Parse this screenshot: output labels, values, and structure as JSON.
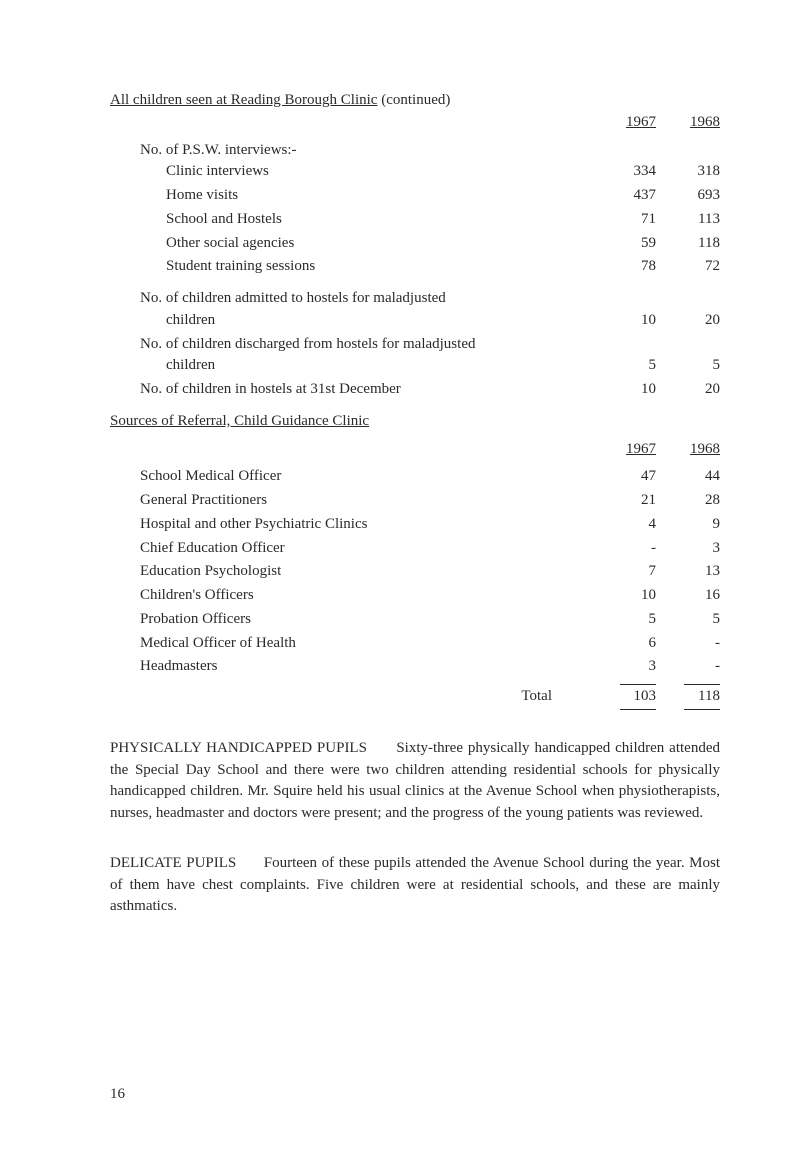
{
  "title_underlined": "All children seen at Reading Borough Clinic",
  "title_tail": " (continued)",
  "years": {
    "a": "1967",
    "b": "1968"
  },
  "psw_header": "No. of P.S.W. interviews:-",
  "psw_rows": [
    {
      "label": "Clinic interviews",
      "a": "334",
      "b": "318"
    },
    {
      "label": "Home visits",
      "a": "437",
      "b": "693"
    },
    {
      "label": "School and Hostels",
      "a": "71",
      "b": "113"
    },
    {
      "label": "Other social agencies",
      "a": "59",
      "b": "118"
    },
    {
      "label": "Student training sessions",
      "a": "78",
      "b": "72"
    }
  ],
  "hostel_rows": [
    {
      "label1": "No. of children admitted to hostels for maladjusted",
      "label2": "children",
      "a": "10",
      "b": "20"
    },
    {
      "label1": "No. of children discharged from hostels for maladjusted",
      "label2": "children",
      "a": "5",
      "b": "5"
    },
    {
      "label_single": "No. of children in hostels at 31st December",
      "a": "10",
      "b": "20"
    }
  ],
  "referral_heading": "Sources of Referral, Child Guidance Clinic",
  "referral_rows": [
    {
      "label": "School Medical Officer",
      "a": "47",
      "b": "44"
    },
    {
      "label": "General Practitioners",
      "a": "21",
      "b": "28"
    },
    {
      "label": "Hospital and other Psychiatric Clinics",
      "a": "4",
      "b": "9"
    },
    {
      "label": "Chief Education Officer",
      "a": "-",
      "b": "3"
    },
    {
      "label": "Education Psychologist",
      "a": "7",
      "b": "13"
    },
    {
      "label": "Children's Officers",
      "a": "10",
      "b": "16"
    },
    {
      "label": "Probation Officers",
      "a": "5",
      "b": "5"
    },
    {
      "label": "Medical Officer of Health",
      "a": "6",
      "b": "-"
    },
    {
      "label": "Headmasters",
      "a": "3",
      "b": "-"
    }
  ],
  "total_label": "Total",
  "total": {
    "a": "103",
    "b": "118"
  },
  "phys_label": "PHYSICALLY HANDICAPPED PUPILS",
  "phys_text": "Sixty-three physically handi­capped children attended the Special Day School and there were two children attending residential schools for physically handicapped children. Mr. Squire held his usual clinics at the Avenue School when physiotherapists, nurses, headmaster and doctors were present; and the progress of the young patients was reviewed.",
  "delicate_label": "DELICATE PUPILS",
  "delicate_text": "Fourteen of these pupils attended the Avenue School during the year. Most of them have chest complaints. Five children were at residential schools, and these are mainly asthmatics.",
  "page_number": "16"
}
